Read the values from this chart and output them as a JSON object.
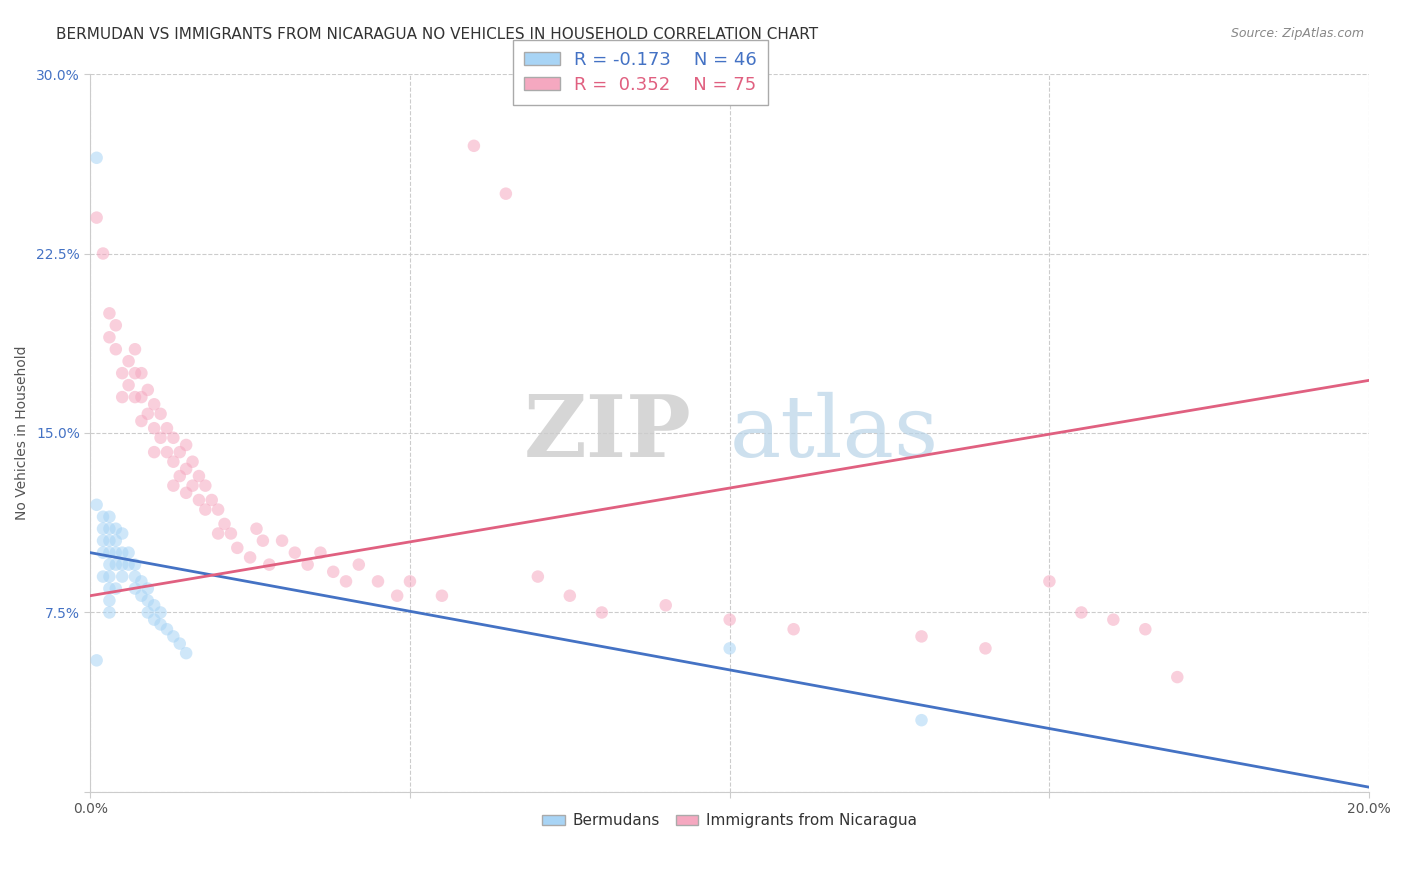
{
  "title": "BERMUDAN VS IMMIGRANTS FROM NICARAGUA NO VEHICLES IN HOUSEHOLD CORRELATION CHART",
  "source": "Source: ZipAtlas.com",
  "ylabel": "No Vehicles in Household",
  "legend_blue_r": "R = -0.173",
  "legend_blue_n": "N = 46",
  "legend_pink_r": "R =  0.352",
  "legend_pink_n": "N = 75",
  "blue_color": "#a8d4f5",
  "pink_color": "#f5a8c0",
  "blue_line_color": "#4472c4",
  "pink_line_color": "#e06080",
  "watermark_zip": "ZIP",
  "watermark_atlas": "atlas",
  "xlim": [
    0.0,
    0.2
  ],
  "ylim": [
    0.0,
    0.3
  ],
  "xticks": [
    0.0,
    0.05,
    0.1,
    0.15,
    0.2
  ],
  "yticks": [
    0.0,
    0.075,
    0.15,
    0.225,
    0.3
  ],
  "ytick_labels": [
    "",
    "7.5%",
    "15.0%",
    "22.5%",
    "30.0%"
  ],
  "xtick_labels": [
    "0.0%",
    "",
    "",
    "",
    "20.0%"
  ],
  "grid_color": "#cccccc",
  "bg_color": "#ffffff",
  "title_fontsize": 11,
  "axis_label_fontsize": 10,
  "tick_fontsize": 10,
  "marker_size": 9,
  "marker_alpha": 0.55,
  "blue_trend_y_start": 0.1,
  "blue_trend_y_end": 0.002,
  "pink_trend_y_start": 0.082,
  "pink_trend_y_end": 0.172,
  "blue_points_x": [
    0.001,
    0.001,
    0.001,
    0.002,
    0.002,
    0.002,
    0.002,
    0.002,
    0.003,
    0.003,
    0.003,
    0.003,
    0.003,
    0.003,
    0.003,
    0.003,
    0.003,
    0.004,
    0.004,
    0.004,
    0.004,
    0.004,
    0.005,
    0.005,
    0.005,
    0.005,
    0.006,
    0.006,
    0.007,
    0.007,
    0.007,
    0.008,
    0.008,
    0.009,
    0.009,
    0.009,
    0.01,
    0.01,
    0.011,
    0.011,
    0.012,
    0.013,
    0.014,
    0.015,
    0.1,
    0.13
  ],
  "blue_points_y": [
    0.265,
    0.12,
    0.055,
    0.115,
    0.11,
    0.105,
    0.1,
    0.09,
    0.115,
    0.11,
    0.105,
    0.1,
    0.095,
    0.09,
    0.085,
    0.08,
    0.075,
    0.11,
    0.105,
    0.1,
    0.095,
    0.085,
    0.108,
    0.1,
    0.095,
    0.09,
    0.1,
    0.095,
    0.095,
    0.09,
    0.085,
    0.088,
    0.082,
    0.085,
    0.08,
    0.075,
    0.078,
    0.072,
    0.075,
    0.07,
    0.068,
    0.065,
    0.062,
    0.058,
    0.06,
    0.03
  ],
  "pink_points_x": [
    0.001,
    0.002,
    0.003,
    0.003,
    0.004,
    0.004,
    0.005,
    0.005,
    0.006,
    0.006,
    0.007,
    0.007,
    0.007,
    0.008,
    0.008,
    0.008,
    0.009,
    0.009,
    0.01,
    0.01,
    0.01,
    0.011,
    0.011,
    0.012,
    0.012,
    0.013,
    0.013,
    0.013,
    0.014,
    0.014,
    0.015,
    0.015,
    0.015,
    0.016,
    0.016,
    0.017,
    0.017,
    0.018,
    0.018,
    0.019,
    0.02,
    0.02,
    0.021,
    0.022,
    0.023,
    0.025,
    0.026,
    0.027,
    0.028,
    0.03,
    0.032,
    0.034,
    0.036,
    0.038,
    0.04,
    0.042,
    0.045,
    0.048,
    0.05,
    0.055,
    0.06,
    0.065,
    0.07,
    0.075,
    0.08,
    0.09,
    0.1,
    0.11,
    0.13,
    0.14,
    0.15,
    0.155,
    0.16,
    0.165,
    0.17
  ],
  "pink_points_y": [
    0.24,
    0.225,
    0.2,
    0.19,
    0.195,
    0.185,
    0.175,
    0.165,
    0.18,
    0.17,
    0.185,
    0.175,
    0.165,
    0.175,
    0.165,
    0.155,
    0.168,
    0.158,
    0.162,
    0.152,
    0.142,
    0.158,
    0.148,
    0.152,
    0.142,
    0.148,
    0.138,
    0.128,
    0.142,
    0.132,
    0.145,
    0.135,
    0.125,
    0.138,
    0.128,
    0.132,
    0.122,
    0.128,
    0.118,
    0.122,
    0.118,
    0.108,
    0.112,
    0.108,
    0.102,
    0.098,
    0.11,
    0.105,
    0.095,
    0.105,
    0.1,
    0.095,
    0.1,
    0.092,
    0.088,
    0.095,
    0.088,
    0.082,
    0.088,
    0.082,
    0.27,
    0.25,
    0.09,
    0.082,
    0.075,
    0.078,
    0.072,
    0.068,
    0.065,
    0.06,
    0.088,
    0.075,
    0.072,
    0.068,
    0.048
  ]
}
